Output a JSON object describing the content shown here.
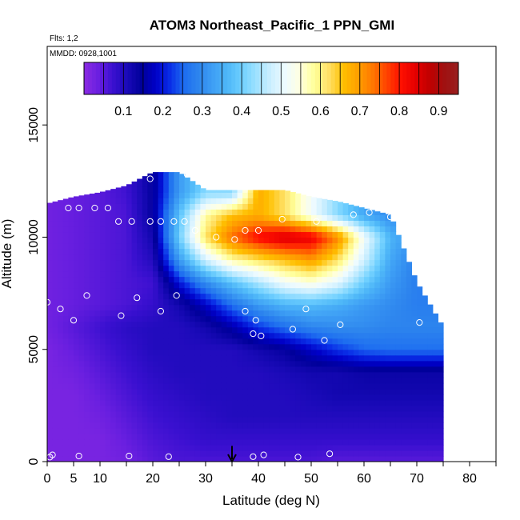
{
  "chart_data": {
    "type": "heatmap",
    "title": "ATOM3 Northeast_Pacific_1 PPN_GMI",
    "annotations": {
      "flights": "Flts: 1,2",
      "dates": "MMDD: 0928,1001"
    },
    "xlabel": "Latitude (deg N)",
    "ylabel": "Altitude (m)",
    "xlim": [
      0,
      85
    ],
    "ylim": [
      0,
      18500
    ],
    "x_ticks": [
      0,
      5,
      10,
      20,
      30,
      40,
      50,
      60,
      70,
      80
    ],
    "x_ticks_unlabeled": [
      15,
      25,
      35,
      45,
      55,
      65,
      75,
      85
    ],
    "y_ticks": [
      0,
      5000,
      10000,
      15000
    ],
    "colorbar": {
      "ticks": [
        0.1,
        0.2,
        0.3,
        0.4,
        0.5,
        0.6,
        0.7,
        0.8,
        0.9
      ],
      "range": [
        0.0,
        0.95
      ],
      "colors": [
        "#8a2be2",
        "#6a1fe0",
        "#3a10d0",
        "#1a0ab8",
        "#00009a",
        "#0000c8",
        "#0a30e8",
        "#1e6ef0",
        "#2e86ee",
        "#3fa0f5",
        "#4fb8f8",
        "#70d0ff",
        "#a0e2ff",
        "#cdefff",
        "#eefbff",
        "#ffffe0",
        "#ffff99",
        "#ffe066",
        "#ffc000",
        "#ffa000",
        "#ff7a00",
        "#ff4400",
        "#ff1000",
        "#e60000",
        "#c00000",
        "#a01010",
        "#992020"
      ]
    },
    "footprint": {
      "x": [
        0,
        5,
        10,
        15,
        20,
        25,
        30,
        35,
        40,
        45,
        50,
        55,
        60,
        65,
        70,
        75
      ],
      "y_top": [
        11500,
        11800,
        12000,
        12300,
        12900,
        12900,
        12100,
        12100,
        12100,
        12100,
        11800,
        11600,
        11300,
        11000,
        8000,
        6000
      ]
    },
    "grid": {
      "x": [
        0,
        5,
        10,
        15,
        20,
        25,
        30,
        35,
        40,
        45,
        50,
        55,
        60,
        65,
        70
      ],
      "y": [
        0,
        1000,
        2000,
        3000,
        4000,
        5000,
        6000,
        7000,
        8000,
        9000,
        10000,
        11000,
        12000
      ],
      "values": [
        [
          0.02,
          0.02,
          0.02,
          0.03,
          0.05,
          0.06,
          0.06,
          0.06,
          0.06,
          0.06,
          0.06,
          0.05,
          null,
          null,
          null
        ],
        [
          0.02,
          0.02,
          0.02,
          0.04,
          0.06,
          0.07,
          0.08,
          0.08,
          0.08,
          0.08,
          0.08,
          0.08,
          0.08,
          null,
          null
        ],
        [
          0.02,
          0.02,
          0.03,
          0.05,
          0.07,
          0.08,
          0.09,
          0.1,
          0.1,
          0.1,
          0.1,
          0.1,
          0.1,
          null,
          null
        ],
        [
          0.02,
          0.02,
          0.04,
          0.06,
          0.08,
          0.09,
          0.1,
          0.1,
          0.1,
          0.1,
          0.11,
          0.12,
          0.12,
          0.12,
          null
        ],
        [
          0.02,
          0.03,
          0.05,
          0.07,
          0.09,
          0.1,
          0.1,
          0.1,
          0.1,
          0.11,
          0.12,
          0.12,
          0.13,
          0.13,
          null
        ],
        [
          0.02,
          0.04,
          0.06,
          0.08,
          0.1,
          0.1,
          0.1,
          0.1,
          0.12,
          0.14,
          0.18,
          0.22,
          0.25,
          0.26,
          0.26
        ],
        [
          0.03,
          0.05,
          0.07,
          0.09,
          0.1,
          0.1,
          0.12,
          0.16,
          0.22,
          0.26,
          0.29,
          0.3,
          0.3,
          0.29,
          0.29
        ],
        [
          0.03,
          0.04,
          0.05,
          0.06,
          0.08,
          0.12,
          0.18,
          0.26,
          0.32,
          0.36,
          0.37,
          0.35,
          0.32,
          0.3,
          0.28
        ],
        [
          0.03,
          0.04,
          0.05,
          0.06,
          0.07,
          0.2,
          0.3,
          0.38,
          0.45,
          0.52,
          0.55,
          0.5,
          0.4,
          0.32,
          0.28
        ],
        [
          0.03,
          0.04,
          0.05,
          0.06,
          0.1,
          0.32,
          0.48,
          0.58,
          0.62,
          0.66,
          0.7,
          0.62,
          0.48,
          0.34,
          0.28
        ],
        [
          0.03,
          0.04,
          0.05,
          0.06,
          0.12,
          0.4,
          0.62,
          0.74,
          0.82,
          0.86,
          0.84,
          0.72,
          0.52,
          0.36,
          0.3
        ],
        [
          0.03,
          0.04,
          0.05,
          0.06,
          0.14,
          0.38,
          0.58,
          0.66,
          0.68,
          0.62,
          0.52,
          0.42,
          0.34,
          0.3,
          null
        ],
        [
          0.03,
          0.04,
          0.05,
          0.07,
          0.14,
          0.32,
          0.42,
          null,
          null,
          null,
          null,
          null,
          null,
          null,
          null
        ]
      ]
    },
    "flight_points": [
      [
        0.5,
        200
      ],
      [
        1,
        300
      ],
      [
        6,
        250
      ],
      [
        15.5,
        250
      ],
      [
        23,
        220
      ],
      [
        39,
        220
      ],
      [
        41,
        300
      ],
      [
        47.5,
        200
      ],
      [
        53.5,
        350
      ],
      [
        0,
        7100
      ],
      [
        2.5,
        6800
      ],
      [
        5,
        6300
      ],
      [
        7.5,
        7400
      ],
      [
        14,
        6500
      ],
      [
        17,
        7300
      ],
      [
        21.5,
        6700
      ],
      [
        24.5,
        7400
      ],
      [
        37.5,
        6700
      ],
      [
        39.5,
        6300
      ],
      [
        39,
        5700
      ],
      [
        40.5,
        5600
      ],
      [
        46.5,
        5900
      ],
      [
        49,
        6800
      ],
      [
        52.5,
        5400
      ],
      [
        55.5,
        6100
      ],
      [
        70.5,
        6200
      ],
      [
        2.5,
        11900
      ],
      [
        4,
        11300
      ],
      [
        6,
        11300
      ],
      [
        9,
        11300
      ],
      [
        11.5,
        11300
      ],
      [
        13.5,
        10700
      ],
      [
        16,
        10700
      ],
      [
        19.5,
        10700
      ],
      [
        21.5,
        10700
      ],
      [
        24,
        10700
      ],
      [
        26,
        10700
      ],
      [
        28,
        10300
      ],
      [
        32,
        10000
      ],
      [
        35.5,
        9900
      ],
      [
        37.5,
        10300
      ],
      [
        40,
        10300
      ],
      [
        44.5,
        10800
      ],
      [
        51,
        10700
      ],
      [
        58,
        11000
      ],
      [
        61,
        11100
      ],
      [
        65,
        10900
      ],
      [
        68.5,
        10900
      ],
      [
        11,
        12400
      ],
      [
        19.5,
        12600
      ],
      [
        26.5,
        12800
      ],
      [
        29.5,
        12400
      ]
    ],
    "marker": {
      "x": 35,
      "y_top": 700,
      "y_bottom": 0
    }
  }
}
